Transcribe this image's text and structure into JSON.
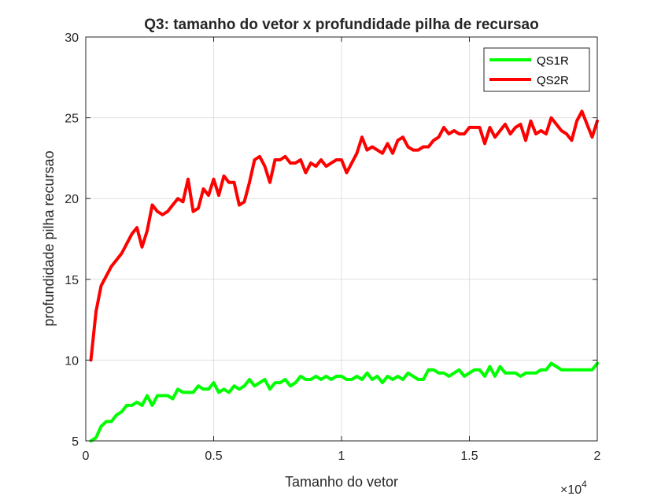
{
  "colors": {
    "QS1R": "#00ff00",
    "QS2R": "#ff0000",
    "axis": "#262626",
    "grid": "#dfdfdf"
  },
  "chart_data": {
    "type": "line",
    "title": "Q3: tamanho do vetor x profundidade pilha de recursao",
    "xlabel": "Tamanho do vetor",
    "ylabel": "profundidade pilha recursao",
    "x_exponent_label": "×10",
    "x_exponent_power": "4",
    "x_scale": 10000,
    "xlim": [
      0,
      20000
    ],
    "ylim": [
      5,
      30
    ],
    "xticks": [
      0,
      5000,
      10000,
      15000,
      20000
    ],
    "xtick_labels": [
      "0",
      "0.5",
      "1",
      "1.5",
      "2"
    ],
    "yticks": [
      5,
      10,
      15,
      20,
      25,
      30
    ],
    "ytick_labels": [
      "5",
      "10",
      "15",
      "20",
      "25",
      "30"
    ],
    "grid": true,
    "legend_position": "top-right",
    "series": [
      {
        "name": "QS1R",
        "color": "#00ff00",
        "x": [
          200,
          400,
          600,
          800,
          1000,
          1200,
          1400,
          1600,
          1800,
          2000,
          2200,
          2400,
          2600,
          2800,
          3000,
          3200,
          3400,
          3600,
          3800,
          4000,
          4200,
          4400,
          4600,
          4800,
          5000,
          5200,
          5400,
          5600,
          5800,
          6000,
          6200,
          6400,
          6600,
          6800,
          7000,
          7200,
          7400,
          7600,
          7800,
          8000,
          8200,
          8400,
          8600,
          8800,
          9000,
          9200,
          9400,
          9600,
          9800,
          10000,
          10200,
          10400,
          10600,
          10800,
          11000,
          11200,
          11400,
          11600,
          11800,
          12000,
          12200,
          12400,
          12600,
          12800,
          13000,
          13200,
          13400,
          13600,
          13800,
          14000,
          14200,
          14400,
          14600,
          14800,
          15000,
          15200,
          15400,
          15600,
          15800,
          16000,
          16200,
          16400,
          16600,
          16800,
          17000,
          17200,
          17400,
          17600,
          17800,
          18000,
          18200,
          18400,
          18600,
          18800,
          19000,
          19200,
          19400,
          19600,
          19800,
          20000
        ],
        "y": [
          5.0,
          5.2,
          5.9,
          6.2,
          6.2,
          6.6,
          6.8,
          7.2,
          7.2,
          7.4,
          7.2,
          7.8,
          7.2,
          7.8,
          7.8,
          7.8,
          7.6,
          8.2,
          8.0,
          8.0,
          8.0,
          8.4,
          8.2,
          8.2,
          8.6,
          8.0,
          8.2,
          8.0,
          8.4,
          8.2,
          8.4,
          8.8,
          8.4,
          8.6,
          8.8,
          8.2,
          8.6,
          8.6,
          8.8,
          8.4,
          8.6,
          9.0,
          8.8,
          8.8,
          9.0,
          8.8,
          9.0,
          8.8,
          9.0,
          9.0,
          8.8,
          8.8,
          9.0,
          8.8,
          9.2,
          8.8,
          9.0,
          8.6,
          9.0,
          8.8,
          9.0,
          8.8,
          9.2,
          9.0,
          8.8,
          8.8,
          9.4,
          9.4,
          9.2,
          9.2,
          9.0,
          9.2,
          9.4,
          9.0,
          9.2,
          9.4,
          9.4,
          9.0,
          9.6,
          9.0,
          9.6,
          9.2,
          9.2,
          9.2,
          9.0,
          9.2,
          9.2,
          9.2,
          9.4,
          9.4,
          9.8,
          9.6,
          9.4,
          9.4,
          9.4,
          9.4,
          9.4,
          9.4,
          9.4,
          9.8
        ]
      },
      {
        "name": "QS2R",
        "color": "#ff0000",
        "x": [
          200,
          400,
          600,
          800,
          1000,
          1200,
          1400,
          1600,
          1800,
          2000,
          2200,
          2400,
          2600,
          2800,
          3000,
          3200,
          3400,
          3600,
          3800,
          4000,
          4200,
          4400,
          4600,
          4800,
          5000,
          5200,
          5400,
          5600,
          5800,
          6000,
          6200,
          6400,
          6600,
          6800,
          7000,
          7200,
          7400,
          7600,
          7800,
          8000,
          8200,
          8400,
          8600,
          8800,
          9000,
          9200,
          9400,
          9600,
          9800,
          10000,
          10200,
          10400,
          10600,
          10800,
          11000,
          11200,
          11400,
          11600,
          11800,
          12000,
          12200,
          12400,
          12600,
          12800,
          13000,
          13200,
          13400,
          13600,
          13800,
          14000,
          14200,
          14400,
          14600,
          14800,
          15000,
          15200,
          15400,
          15600,
          15800,
          16000,
          16200,
          16400,
          16600,
          16800,
          17000,
          17200,
          17400,
          17600,
          17800,
          18000,
          18200,
          18400,
          18600,
          18800,
          19000,
          19200,
          19400,
          19600,
          19800,
          20000
        ],
        "y": [
          10.0,
          13.0,
          14.6,
          15.2,
          15.8,
          16.2,
          16.6,
          17.2,
          17.8,
          18.2,
          17.0,
          18.0,
          19.6,
          19.2,
          19.0,
          19.2,
          19.6,
          20.0,
          19.8,
          21.2,
          19.2,
          19.4,
          20.6,
          20.2,
          21.2,
          20.2,
          21.4,
          21.0,
          21.0,
          19.6,
          19.8,
          21.0,
          22.4,
          22.6,
          22.0,
          21.0,
          22.4,
          22.4,
          22.6,
          22.2,
          22.2,
          22.4,
          21.6,
          22.2,
          22.0,
          22.4,
          22.0,
          22.2,
          22.4,
          22.4,
          21.6,
          22.2,
          22.8,
          23.8,
          23.0,
          23.2,
          23.0,
          22.8,
          23.4,
          22.8,
          23.6,
          23.8,
          23.2,
          23.0,
          23.0,
          23.2,
          23.2,
          23.6,
          23.8,
          24.4,
          24.0,
          24.2,
          24.0,
          24.0,
          24.4,
          24.4,
          24.4,
          23.4,
          24.4,
          23.8,
          24.2,
          24.6,
          24.0,
          24.4,
          24.6,
          23.6,
          24.8,
          24.0,
          24.2,
          24.0,
          25.0,
          24.6,
          24.2,
          24.0,
          23.6,
          24.8,
          25.4,
          24.6,
          23.8,
          24.8
        ]
      }
    ]
  }
}
